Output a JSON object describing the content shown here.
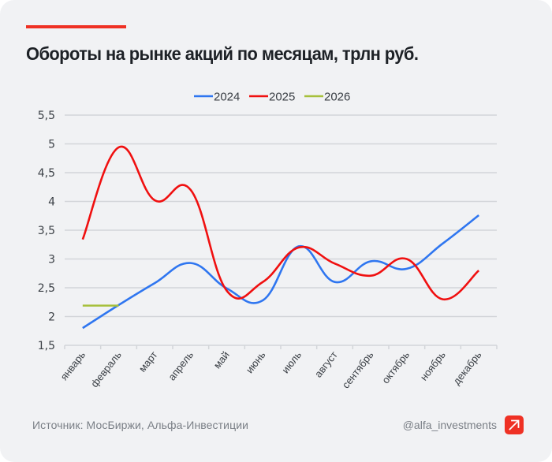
{
  "header": {
    "title": "Обороты на рынке акций по месяцам, трлн руб."
  },
  "footer": {
    "source": "Источник: МосБиржи, Альфа-Инвестиции",
    "handle": "@alfa_investments",
    "logo_icon": "alfa-arrow-logo-icon"
  },
  "colors": {
    "accent": "#ef3124",
    "background": "#f1f2f4",
    "series_2024": "#2f76f0",
    "series_2025": "#f01010",
    "series_2026": "#a7c03c"
  },
  "chart_data": {
    "type": "line",
    "title": "Обороты на рынке акций по месяцам, трлн руб.",
    "xlabel": "",
    "ylabel": "",
    "categories": [
      "январь",
      "февраль",
      "март",
      "апрель",
      "май",
      "июнь",
      "июль",
      "август",
      "сентябрь",
      "октябрь",
      "ноябрь",
      "декабрь"
    ],
    "ylim": [
      1.5,
      5.5
    ],
    "yticks": [
      "1,5",
      "2",
      "2,5",
      "3",
      "3,5",
      "4",
      "4,5",
      "5",
      "5,5"
    ],
    "ytick_values": [
      1.5,
      2,
      2.5,
      3,
      3.5,
      4,
      4.5,
      5,
      5.5
    ],
    "grid": true,
    "legend_position": "top-center",
    "smooth": true,
    "series": [
      {
        "name": "2024",
        "color": "#2f76f0",
        "values": [
          1.8,
          2.2,
          2.58,
          2.93,
          2.49,
          2.28,
          3.22,
          2.6,
          2.96,
          2.83,
          3.27,
          3.76
        ]
      },
      {
        "name": "2025",
        "color": "#f01010",
        "values": [
          3.34,
          4.94,
          4.02,
          4.2,
          2.45,
          2.6,
          3.2,
          2.92,
          2.71,
          3.0,
          2.3,
          2.8
        ]
      },
      {
        "name": "2026",
        "color": "#a7c03c",
        "values": [
          2.19,
          2.19
        ]
      }
    ]
  }
}
